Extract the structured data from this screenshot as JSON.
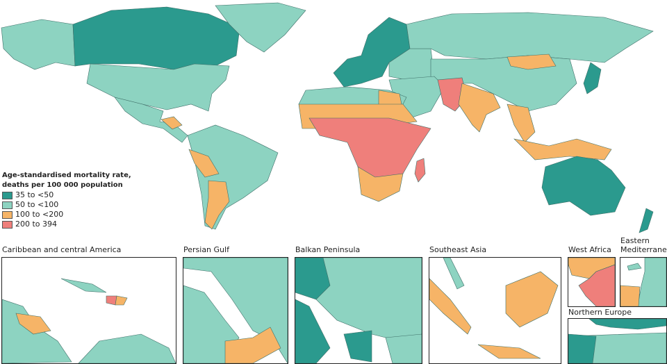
{
  "legend": {
    "title_line1": "Age-standardised mortality rate,",
    "title_line2": "deaths per 100 000 population",
    "items": [
      {
        "label": "35 to <50",
        "color": "#2b9a8e"
      },
      {
        "label": "50 to <100",
        "color": "#8dd3c1"
      },
      {
        "label": "100 to <200",
        "color": "#f6b467"
      },
      {
        "label": "200 to 394",
        "color": "#ef7f7b"
      }
    ]
  },
  "insets": [
    {
      "label": "Caribbean and central America"
    },
    {
      "label": "Persian Gulf"
    },
    {
      "label": "Balkan Peninsula"
    },
    {
      "label": "Southeast Asia"
    },
    {
      "label": "West Africa"
    },
    {
      "label": "Eastern Mediterranean"
    },
    {
      "label": "Northern Europe"
    }
  ]
}
